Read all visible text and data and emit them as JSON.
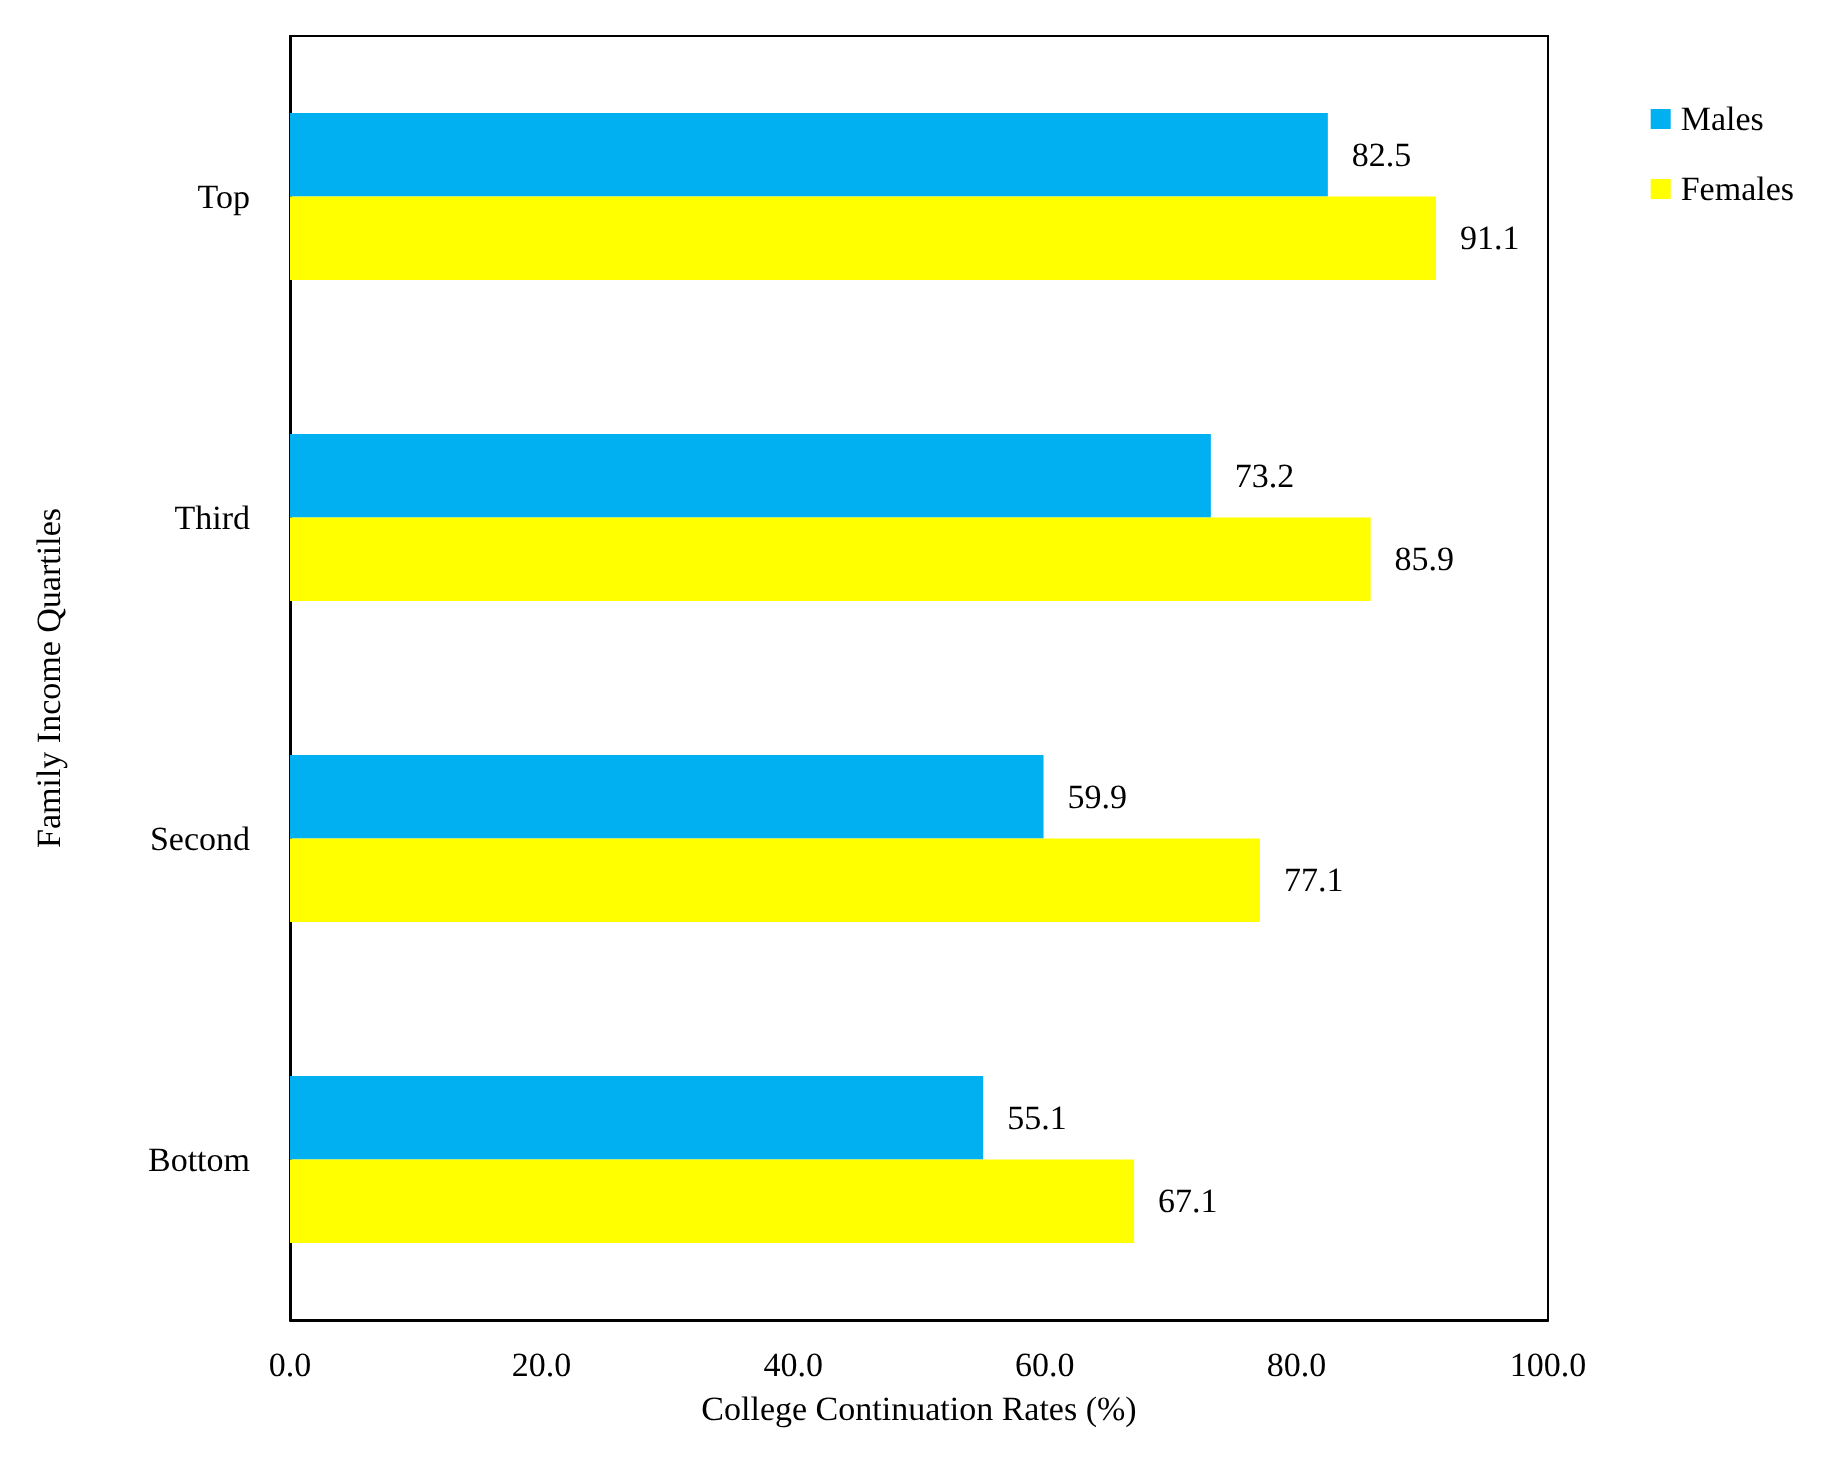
{
  "chart_data": {
    "type": "bar",
    "orientation": "horizontal",
    "xlabel": "College Continuation Rates (%)",
    "ylabel": "Family Income Quartiles",
    "categories": [
      "Top",
      "Third",
      "Second",
      "Bottom"
    ],
    "series": [
      {
        "name": "Males",
        "color": "#00b0f0",
        "values": [
          82.5,
          73.2,
          59.9,
          55.1
        ]
      },
      {
        "name": "Females",
        "color": "#ffff00",
        "values": [
          91.1,
          85.9,
          77.1,
          67.1
        ]
      }
    ],
    "xlim": [
      0,
      100
    ],
    "xticks": [
      {
        "value": 0,
        "label": "0.0"
      },
      {
        "value": 20,
        "label": "20.0"
      },
      {
        "value": 40,
        "label": "40.0"
      },
      {
        "value": 60,
        "label": "60.0"
      },
      {
        "value": 80,
        "label": "80.0"
      },
      {
        "value": 100,
        "label": "100.0"
      }
    ],
    "data_labels": true,
    "legend": "top right",
    "grid": false
  }
}
